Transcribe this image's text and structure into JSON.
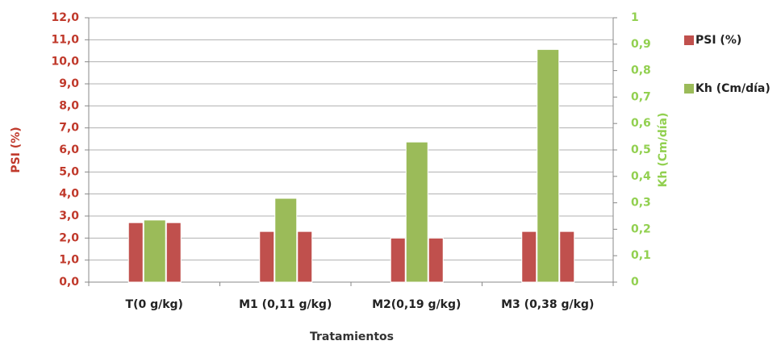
{
  "chart_data": {
    "type": "bar",
    "categories": [
      "T(0 g/kg)",
      "M1 (0,11 g/kg)",
      "M2(0,19 g/kg)",
      "M3 (0,38 g/kg)"
    ],
    "series": [
      {
        "name": "PSI (%)",
        "color": "#c0504d",
        "values": [
          2.7,
          2.3,
          2.0,
          2.3
        ]
      },
      {
        "name": "Kh (Cm/día)",
        "color": "#9bbb59",
        "axis": "y2",
        "values": [
          0.235,
          0.317,
          0.53,
          0.88
        ]
      }
    ],
    "x_label": "Tratamientos",
    "y_label": "PSI (%)",
    "y2_label": "Kh (Cm/día)",
    "ylim": [
      0,
      12
    ],
    "yticks": [
      {
        "value": 0,
        "label": "0,0"
      },
      {
        "value": 1,
        "label": "1,0"
      },
      {
        "value": 2,
        "label": "2,0"
      },
      {
        "value": 3,
        "label": "3,0"
      },
      {
        "value": 4,
        "label": "4,0"
      },
      {
        "value": 5,
        "label": "5,0"
      },
      {
        "value": 6,
        "label": "6,0"
      },
      {
        "value": 7,
        "label": "7,0"
      },
      {
        "value": 8,
        "label": "8,0"
      },
      {
        "value": 9,
        "label": "9,0"
      },
      {
        "value": 10,
        "label": "10,0"
      },
      {
        "value": 11,
        "label": "11,0"
      },
      {
        "value": 12,
        "label": "12,0"
      }
    ],
    "y2lim": [
      0,
      1
    ],
    "y2ticks": [
      0,
      {
        "value": 0.1,
        "label": "0,1"
      },
      {
        "value": 0.2,
        "label": "0,2"
      },
      {
        "value": 0.3,
        "label": "0,3"
      },
      {
        "value": 0.4,
        "label": "0,4"
      },
      {
        "value": 0.5,
        "label": "0,5"
      },
      {
        "value": 0.6,
        "label": "0,6"
      },
      {
        "value": 0.7,
        "label": "0,7"
      },
      {
        "value": 0.8,
        "label": "0,8"
      },
      {
        "value": 0.9,
        "label": "0,9"
      },
      1
    ],
    "grid": true,
    "legend": "right"
  }
}
